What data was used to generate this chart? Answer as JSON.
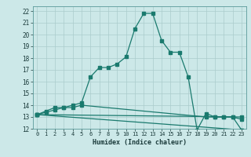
{
  "xlabel": "Humidex (Indice chaleur)",
  "xlim": [
    -0.5,
    23.5
  ],
  "ylim": [
    12,
    22.4
  ],
  "xticks": [
    0,
    1,
    2,
    3,
    4,
    5,
    6,
    7,
    8,
    9,
    10,
    11,
    12,
    13,
    14,
    15,
    16,
    17,
    18,
    19,
    20,
    21,
    22,
    23
  ],
  "yticks": [
    12,
    13,
    14,
    15,
    16,
    17,
    18,
    19,
    20,
    21,
    22
  ],
  "bg_color": "#cce8e8",
  "line_color": "#1a7a6e",
  "grid_color": "#aacccc",
  "curve1_x": [
    0,
    1,
    2,
    3,
    4,
    5,
    6,
    7,
    8,
    9,
    10,
    11,
    12,
    13,
    14,
    15,
    16,
    17,
    18,
    19,
    20,
    21,
    22,
    23
  ],
  "curve1_y": [
    13.2,
    13.5,
    13.8,
    13.8,
    14.0,
    14.2,
    16.4,
    17.2,
    17.2,
    17.5,
    18.1,
    20.5,
    21.8,
    21.8,
    19.5,
    18.5,
    18.5,
    16.4,
    11.9,
    13.3,
    13.0,
    13.0,
    13.0,
    11.9
  ],
  "curve2_x": [
    0,
    1,
    2,
    3,
    4,
    5,
    19,
    20,
    21,
    22,
    23
  ],
  "curve2_y": [
    13.2,
    13.4,
    13.6,
    13.8,
    13.8,
    14.0,
    13.0,
    13.0,
    13.0,
    13.0,
    12.8
  ],
  "curve3_x": [
    0,
    23
  ],
  "curve3_y": [
    13.2,
    13.0
  ],
  "curve4_x": [
    0,
    23
  ],
  "curve4_y": [
    13.2,
    11.9
  ]
}
